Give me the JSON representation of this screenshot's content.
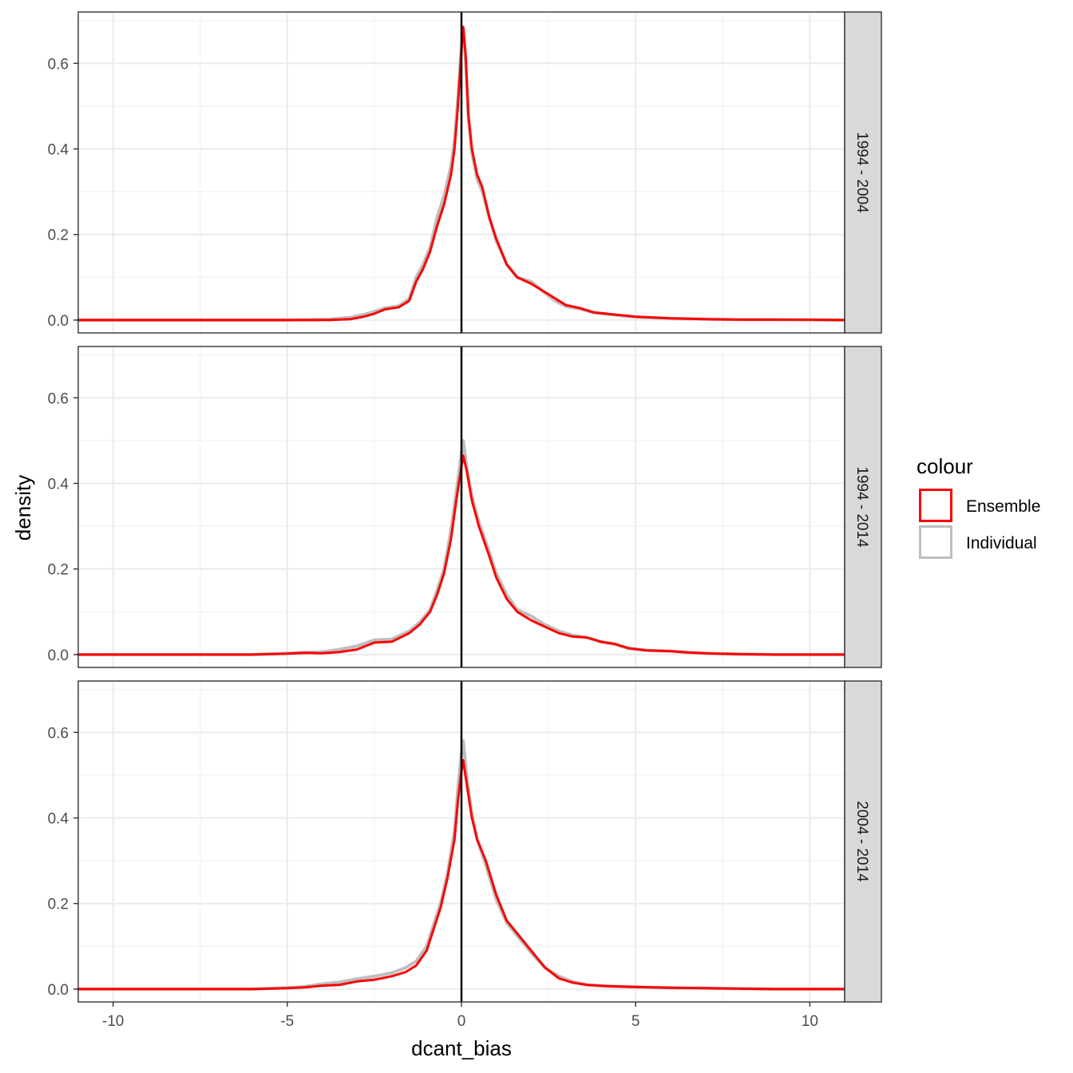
{
  "chart_data": {
    "type": "line",
    "xlabel": "dcant_bias",
    "ylabel": "density",
    "xlim": [
      -11,
      11
    ],
    "ylim": [
      -0.03,
      0.72
    ],
    "x_ticks": [
      -10,
      -5,
      0,
      5,
      10
    ],
    "x_tick_labels": [
      "-10",
      "-5",
      "0",
      "5",
      "10"
    ],
    "y_ticks": [
      0.0,
      0.2,
      0.4,
      0.6
    ],
    "y_tick_labels": [
      "0.0",
      "0.2",
      "0.4",
      "0.6"
    ],
    "grid": true,
    "reference_line_x": 0,
    "legend": {
      "title": "colour",
      "position": "right",
      "entries": [
        {
          "label": "Ensemble",
          "color": "#ff0000"
        },
        {
          "label": "Individual",
          "color": "#bebebe"
        }
      ]
    },
    "panels": [
      {
        "label": "1994 - 2004",
        "series": [
          {
            "name": "Ensemble",
            "color": "#ff0000",
            "x": [
              -11,
              -5,
              -3.8,
              -3.2,
              -2.8,
              -2.5,
              -2.2,
              -1.8,
              -1.5,
              -1.3,
              -1.1,
              -0.9,
              -0.7,
              -0.5,
              -0.3,
              -0.2,
              -0.1,
              0,
              0.05,
              0.12,
              0.2,
              0.3,
              0.45,
              0.6,
              0.8,
              1.0,
              1.3,
              1.6,
              2.0,
              2.3,
              2.6,
              2.8,
              3.0,
              3.4,
              3.8,
              4.5,
              5.0,
              6.0,
              7.0,
              8.0,
              9.0,
              10.0,
              11.0
            ],
            "y": [
              0.0,
              0.0,
              0.0,
              0.002,
              0.008,
              0.015,
              0.025,
              0.03,
              0.045,
              0.09,
              0.12,
              0.16,
              0.22,
              0.27,
              0.34,
              0.4,
              0.5,
              0.63,
              0.685,
              0.62,
              0.48,
              0.4,
              0.34,
              0.31,
              0.24,
              0.19,
              0.13,
              0.1,
              0.085,
              0.07,
              0.055,
              0.045,
              0.035,
              0.028,
              0.018,
              0.012,
              0.008,
              0.004,
              0.002,
              0.001,
              0.001,
              0.001,
              0.0
            ]
          },
          {
            "name": "Individual",
            "color": "#bebebe",
            "x": [
              -11,
              -5,
              -3.8,
              -3.2,
              -2.8,
              -2.5,
              -2.2,
              -1.8,
              -1.5,
              -1.3,
              -1.1,
              -0.9,
              -0.7,
              -0.5,
              -0.3,
              -0.2,
              -0.1,
              0,
              0.05,
              0.12,
              0.2,
              0.3,
              0.45,
              0.6,
              0.8,
              1.0,
              1.3,
              1.6,
              2.0,
              2.3,
              2.6,
              2.8,
              3.0,
              3.4,
              3.8,
              4.5,
              5.0,
              6.0,
              7.0,
              8.0,
              9.0,
              10.0,
              11.0
            ],
            "y": [
              0.0,
              0.0,
              0.002,
              0.006,
              0.013,
              0.02,
              0.028,
              0.033,
              0.05,
              0.1,
              0.13,
              0.17,
              0.24,
              0.29,
              0.36,
              0.42,
              0.52,
              0.64,
              0.68,
              0.61,
              0.47,
              0.39,
              0.33,
              0.3,
              0.24,
              0.185,
              0.13,
              0.1,
              0.09,
              0.07,
              0.05,
              0.04,
              0.032,
              0.026,
              0.017,
              0.011,
              0.007,
              0.004,
              0.002,
              0.001,
              0.001,
              0.0,
              0.0
            ]
          }
        ]
      },
      {
        "label": "1994 - 2014",
        "series": [
          {
            "name": "Ensemble",
            "color": "#ff0000",
            "x": [
              -11,
              -6,
              -5,
              -4.5,
              -4.0,
              -3.5,
              -3.0,
              -2.5,
              -2.0,
              -1.5,
              -1.2,
              -0.9,
              -0.7,
              -0.5,
              -0.3,
              -0.15,
              0,
              0.05,
              0.15,
              0.3,
              0.5,
              0.8,
              1.0,
              1.3,
              1.6,
              2.0,
              2.4,
              2.8,
              3.2,
              3.6,
              4.0,
              4.4,
              4.8,
              5.3,
              6.0,
              6.5,
              7.0,
              8.0,
              9.0,
              10.0,
              11.0
            ],
            "y": [
              0.0,
              0.0,
              0.002,
              0.004,
              0.003,
              0.006,
              0.012,
              0.028,
              0.03,
              0.05,
              0.07,
              0.1,
              0.14,
              0.19,
              0.27,
              0.36,
              0.44,
              0.465,
              0.43,
              0.36,
              0.3,
              0.23,
              0.18,
              0.13,
              0.1,
              0.08,
              0.065,
              0.05,
              0.042,
              0.04,
              0.03,
              0.025,
              0.015,
              0.01,
              0.008,
              0.005,
              0.003,
              0.001,
              0.0,
              0.0,
              0.0
            ]
          },
          {
            "name": "Individual",
            "color": "#bebebe",
            "x": [
              -11,
              -6,
              -5,
              -4.5,
              -4.0,
              -3.5,
              -3.0,
              -2.5,
              -2.0,
              -1.5,
              -1.2,
              -0.9,
              -0.7,
              -0.5,
              -0.3,
              -0.15,
              0,
              0.05,
              0.15,
              0.3,
              0.5,
              0.8,
              1.0,
              1.3,
              1.6,
              2.0,
              2.4,
              2.8,
              3.2,
              3.6,
              4.0,
              4.4,
              4.8,
              5.3,
              6.0,
              6.5,
              7.0,
              8.0,
              9.0,
              10.0,
              11.0
            ],
            "y": [
              0.0,
              0.0,
              0.003,
              0.005,
              0.006,
              0.012,
              0.02,
              0.034,
              0.036,
              0.055,
              0.075,
              0.105,
              0.15,
              0.2,
              0.29,
              0.38,
              0.47,
              0.5,
              0.44,
              0.37,
              0.31,
              0.24,
              0.19,
              0.14,
              0.105,
              0.09,
              0.07,
              0.055,
              0.045,
              0.04,
              0.03,
              0.024,
              0.014,
              0.01,
              0.008,
              0.005,
              0.003,
              0.001,
              0.0,
              0.0,
              0.0
            ]
          }
        ]
      },
      {
        "label": "2004 - 2014",
        "series": [
          {
            "name": "Ensemble",
            "color": "#ff0000",
            "x": [
              -11,
              -6,
              -5,
              -4.5,
              -4.0,
              -3.5,
              -3.0,
              -2.5,
              -2.0,
              -1.6,
              -1.3,
              -1.0,
              -0.8,
              -0.6,
              -0.4,
              -0.2,
              -0.1,
              0,
              0.05,
              0.15,
              0.3,
              0.45,
              0.7,
              1.0,
              1.3,
              1.6,
              2.0,
              2.4,
              2.8,
              3.2,
              3.6,
              4.2,
              5.0,
              6.0,
              7.0,
              8.0,
              9.0,
              10.0,
              11.0
            ],
            "y": [
              0.0,
              0.0,
              0.002,
              0.004,
              0.008,
              0.01,
              0.018,
              0.022,
              0.03,
              0.04,
              0.055,
              0.09,
              0.14,
              0.19,
              0.26,
              0.35,
              0.44,
              0.51,
              0.535,
              0.48,
              0.4,
              0.35,
              0.3,
              0.22,
              0.16,
              0.13,
              0.09,
              0.05,
              0.025,
              0.015,
              0.01,
              0.007,
              0.005,
              0.003,
              0.002,
              0.001,
              0.0,
              0.0,
              0.0
            ]
          },
          {
            "name": "Individual",
            "color": "#bebebe",
            "x": [
              -11,
              -6,
              -5,
              -4.5,
              -4.0,
              -3.5,
              -3.0,
              -2.5,
              -2.0,
              -1.6,
              -1.3,
              -1.0,
              -0.8,
              -0.6,
              -0.4,
              -0.2,
              -0.1,
              0,
              0.05,
              0.15,
              0.3,
              0.45,
              0.7,
              1.0,
              1.3,
              1.6,
              2.0,
              2.4,
              2.8,
              3.2,
              3.6,
              4.2,
              5.0,
              6.0,
              7.0,
              8.0,
              9.0,
              10.0,
              11.0
            ],
            "y": [
              0.0,
              0.0,
              0.003,
              0.006,
              0.012,
              0.016,
              0.024,
              0.03,
              0.038,
              0.05,
              0.065,
              0.1,
              0.15,
              0.2,
              0.27,
              0.37,
              0.47,
              0.55,
              0.58,
              0.5,
              0.41,
              0.35,
              0.29,
              0.21,
              0.155,
              0.125,
              0.085,
              0.05,
              0.03,
              0.017,
              0.01,
              0.007,
              0.005,
              0.003,
              0.002,
              0.001,
              0.0,
              0.0,
              0.0
            ]
          }
        ]
      }
    ]
  }
}
